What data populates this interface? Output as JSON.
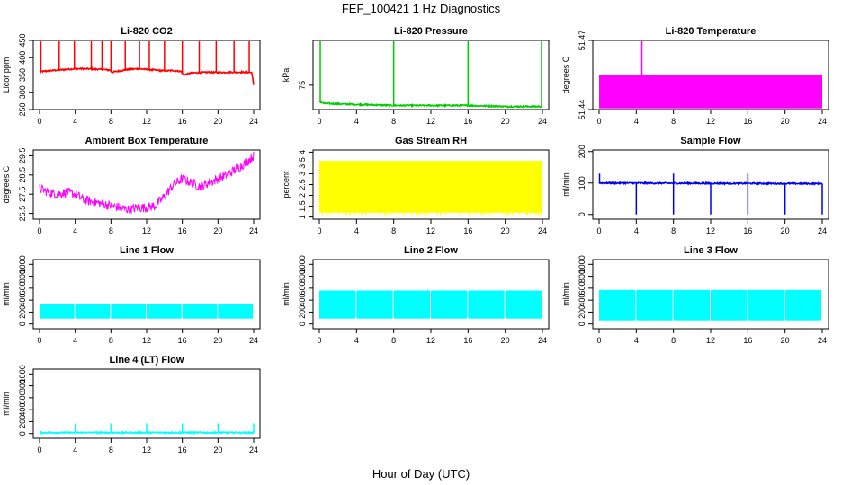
{
  "figure": {
    "title": "FEF_100421  1 Hz Diagnostics",
    "xlabel": "Hour of Day (UTC)"
  },
  "chart_data": [
    {
      "type": "line",
      "title": "Li-820 CO2",
      "ylabel": "Licor ppm",
      "color": "#ff0000",
      "xlim": [
        0,
        24
      ],
      "ylim": [
        250,
        450
      ],
      "xticks": [
        0,
        4,
        8,
        12,
        16,
        20,
        24
      ],
      "yticks": [
        250,
        300,
        350,
        400,
        450
      ],
      "series": [
        {
          "x": [
            0,
            0.2,
            1,
            2,
            3,
            4,
            5,
            6,
            7,
            7.9,
            8.1,
            9,
            10,
            11,
            12,
            13,
            14,
            15,
            15.9,
            16.1,
            17,
            18,
            19,
            20,
            21,
            22,
            23,
            23.8,
            24
          ],
          "y": [
            355,
            360,
            362,
            364,
            366,
            368,
            368,
            367,
            366,
            364,
            358,
            362,
            366,
            368,
            366,
            364,
            362,
            363,
            360,
            350,
            356,
            357,
            358,
            357,
            358,
            358,
            358,
            357,
            320
          ]
        }
      ],
      "spikes_x": [
        0.15,
        2.2,
        3.9,
        5.8,
        7.0,
        8.0,
        9.6,
        11.2,
        12.3,
        14.0,
        16.0,
        17.9,
        19.8,
        21.8,
        23.5
      ]
    },
    {
      "type": "line",
      "title": "Li-820 Pressure",
      "ylabel": "kPa",
      "color": "#00cc00",
      "xlim": [
        0,
        24
      ],
      "ylim": [
        73.8,
        77.2
      ],
      "xticks": [
        0,
        4,
        8,
        12,
        16,
        20,
        24
      ],
      "yticks": [
        75
      ],
      "series": [
        {
          "x": [
            0,
            0.5,
            4,
            8,
            12,
            16,
            20,
            24
          ],
          "y": [
            74.2,
            74.1,
            74.05,
            74.0,
            74.0,
            74.0,
            73.95,
            73.95
          ]
        }
      ],
      "spikes_x": [
        0.1,
        8.0,
        16.0,
        23.9
      ]
    },
    {
      "type": "area",
      "title": "Li-820 Temperature",
      "ylabel": "degrees C",
      "color": "#ff00ff",
      "xlim": [
        0,
        24
      ],
      "ylim": [
        51.44,
        51.47
      ],
      "xticks": [
        0,
        4,
        8,
        12,
        16,
        20,
        24
      ],
      "yticks": [
        51.44,
        51.47
      ],
      "band": [
        51.4405,
        51.455
      ],
      "spikes_x": [
        4.6
      ]
    },
    {
      "type": "line",
      "title": "Ambient Box Temperature",
      "ylabel": "degrees C",
      "color": "#ff00ff",
      "xlim": [
        0,
        24
      ],
      "ylim": [
        26.2,
        29.8
      ],
      "xticks": [
        0,
        4,
        8,
        12,
        16,
        20,
        24
      ],
      "yticks": [
        26.5,
        27.5,
        28.5,
        29.5
      ],
      "series": [
        {
          "x": [
            0,
            1,
            2,
            3,
            4,
            5,
            6,
            7,
            8,
            9,
            10,
            11,
            12,
            13,
            14,
            15,
            16,
            17,
            18,
            19,
            20,
            21,
            22,
            23,
            24
          ],
          "y": [
            27.8,
            27.6,
            27.5,
            27.6,
            27.5,
            27.2,
            27.1,
            27.0,
            26.9,
            26.8,
            26.7,
            26.8,
            26.8,
            26.9,
            27.4,
            28.0,
            28.3,
            28.1,
            27.9,
            28.1,
            28.3,
            28.5,
            28.8,
            29.1,
            29.5
          ]
        }
      ],
      "noise": 0.25
    },
    {
      "type": "area",
      "title": "Gas Stream RH",
      "ylabel": "percent",
      "color": "#ffff00",
      "xlim": [
        0,
        24
      ],
      "ylim": [
        0.9,
        4.1
      ],
      "xticks": [
        0,
        4,
        8,
        12,
        16,
        20,
        24
      ],
      "yticks": [
        1.0,
        1.5,
        2.0,
        2.5,
        3.0,
        3.5,
        4.0
      ],
      "band": [
        1.2,
        3.6
      ],
      "dropout_to": 1.1
    },
    {
      "type": "line",
      "title": "Sample Flow",
      "ylabel": "ml/min",
      "color": "#0000ee",
      "xlim": [
        0,
        24
      ],
      "ylim": [
        -15,
        205
      ],
      "xticks": [
        0,
        4,
        8,
        12,
        16,
        20,
        24
      ],
      "yticks": [
        0,
        100,
        200
      ],
      "series": [
        {
          "x": [
            0,
            24
          ],
          "y": [
            100,
            98
          ]
        }
      ],
      "spikes_x": [
        0.05,
        8.0,
        16.0
      ],
      "spike_to": 130,
      "dropouts_x": [
        4.0,
        8.0,
        12.0,
        16.0,
        20.0,
        24.0
      ],
      "dropout_to": 0
    },
    {
      "type": "area",
      "title": "Line 1 Flow",
      "ylabel": "ml/min",
      "color": "#00ffff",
      "xlim": [
        0,
        24
      ],
      "ylim": [
        -80,
        1080
      ],
      "xticks": [
        0,
        4,
        8,
        12,
        16,
        20,
        24
      ],
      "yticks": [
        0,
        200,
        400,
        600,
        800,
        1000
      ],
      "band": [
        90,
        330
      ],
      "gaps_x": [
        4,
        8,
        12,
        16,
        20,
        24
      ]
    },
    {
      "type": "area",
      "title": "Line 2 Flow",
      "ylabel": "ml/min",
      "color": "#00ffff",
      "xlim": [
        0,
        24
      ],
      "ylim": [
        -80,
        1080
      ],
      "xticks": [
        0,
        4,
        8,
        12,
        16,
        20,
        24
      ],
      "yticks": [
        0,
        200,
        400,
        600,
        800,
        1000
      ],
      "band": [
        90,
        560
      ],
      "gaps_x": [
        4,
        8,
        12,
        16,
        20,
        24
      ]
    },
    {
      "type": "area",
      "title": "Line 3 Flow",
      "ylabel": "ml/min",
      "color": "#00ffff",
      "xlim": [
        0,
        24
      ],
      "ylim": [
        -80,
        1080
      ],
      "xticks": [
        0,
        4,
        8,
        12,
        16,
        20,
        24
      ],
      "yticks": [
        0,
        200,
        400,
        600,
        800,
        1000
      ],
      "band": [
        60,
        570
      ],
      "gaps_x": [
        4,
        8,
        12,
        16,
        20,
        24
      ]
    },
    {
      "type": "line",
      "title": "Line 4 (LT) Flow",
      "ylabel": "ml/min",
      "color": "#00ffff",
      "xlim": [
        0,
        24
      ],
      "ylim": [
        -80,
        1080
      ],
      "xticks": [
        0,
        4,
        8,
        12,
        16,
        20,
        24
      ],
      "yticks": [
        0,
        200,
        400,
        600,
        800,
        1000
      ],
      "series": [
        {
          "x": [
            0,
            24
          ],
          "y": [
            15,
            15
          ]
        }
      ],
      "spikes_x": [
        4.0,
        8.0,
        12.0,
        16.0,
        20.0,
        24.0
      ],
      "spike_to": 170
    }
  ]
}
